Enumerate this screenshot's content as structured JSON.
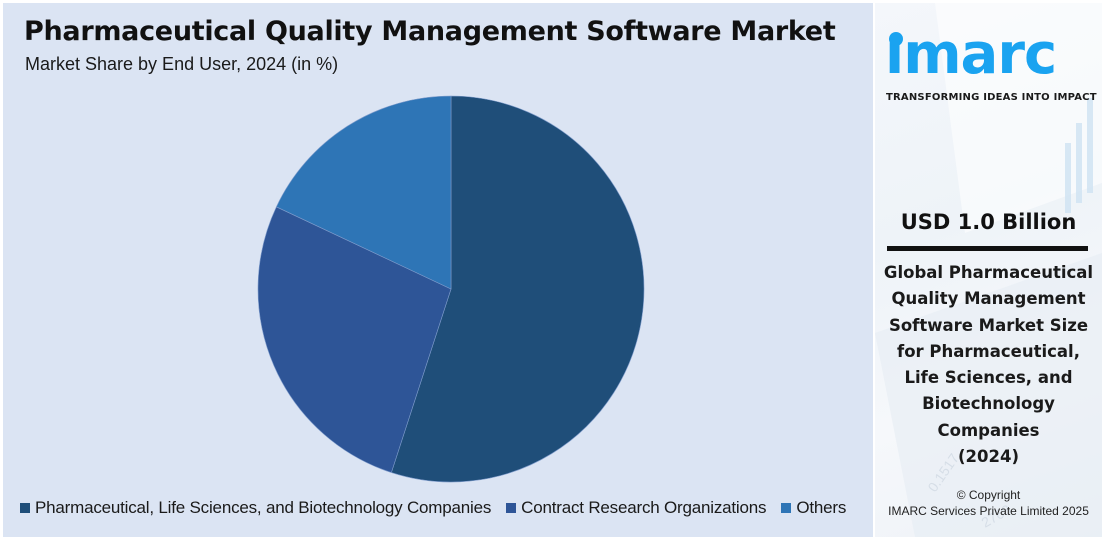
{
  "header": {
    "title": "Pharmaceutical Quality Management Software Market",
    "subtitle": "Market Share by End User, 2024 (in %)"
  },
  "chart_data": {
    "type": "pie",
    "title": "Pharmaceutical Quality Management Software Market",
    "subtitle": "Market Share by End User, 2024 (in %)",
    "categories": [
      "Pharmaceutical, Life Sciences, and Biotechnology Companies",
      "Contract Research Organizations",
      "Others"
    ],
    "values": [
      55,
      27,
      18
    ],
    "colors": [
      "#1f4e79",
      "#2e5597",
      "#2e75b6"
    ],
    "start_angle": "12 o'clock",
    "direction": "clockwise",
    "data_labels": false,
    "legend_position": "bottom"
  },
  "legend": {
    "items": [
      {
        "label": "Pharmaceutical, Life Sciences, and Biotechnology Companies",
        "color": "#1f4e79"
      },
      {
        "label": "Contract Research Organizations",
        "color": "#2e5597"
      },
      {
        "label": "Others",
        "color": "#2e75b6"
      }
    ]
  },
  "side_panel": {
    "logo_text": "ımarc",
    "tagline": "TRANSFORMING IDEAS INTO IMPACT",
    "market_size": "USD 1.0 Billion",
    "description_lines": [
      "Global Pharmaceutical",
      "Quality Management",
      "Software Market Size",
      "for Pharmaceutical,",
      "Life Sciences, and",
      "Biotechnology",
      "Companies",
      "(2024)"
    ],
    "copyright_line1": "© Copyright",
    "copyright_line2": "IMARC Services Private Limited 2025"
  },
  "colors": {
    "main_background": "#dbe4f3",
    "brand_accent": "#1aa3f0"
  }
}
